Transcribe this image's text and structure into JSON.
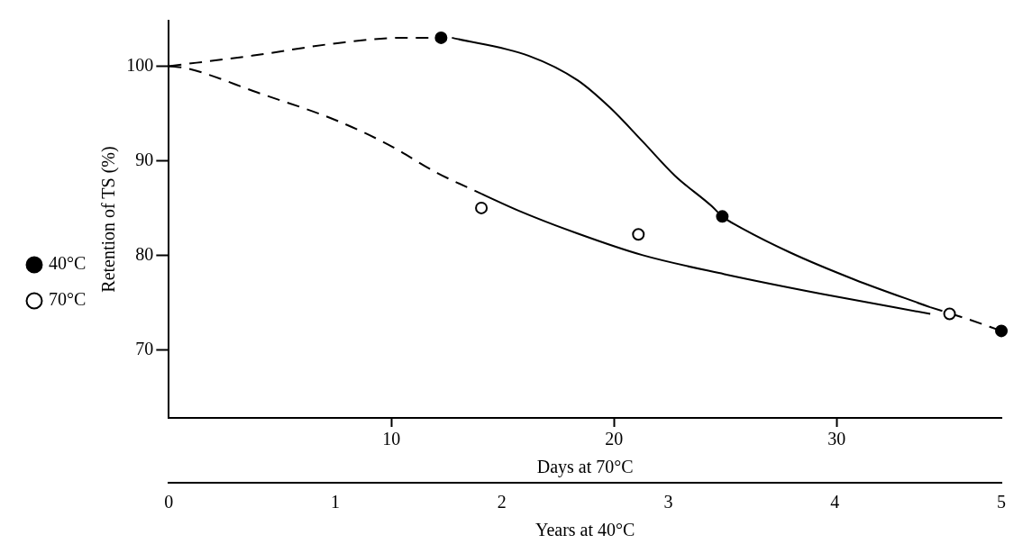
{
  "chart_data": {
    "type": "scatter",
    "xlabel": "Years at 40°C",
    "ylabel": "Retention of TS (%)",
    "x2label": "Days at 70°C",
    "xlim": [
      0,
      5
    ],
    "xticks": [
      0,
      1,
      2,
      3,
      4,
      5
    ],
    "x2lim": [
      0,
      37.4
    ],
    "x2ticks": [
      10,
      20,
      30
    ],
    "ylim": [
      62.8,
      104.8
    ],
    "yticks": [
      70,
      80,
      90,
      100
    ],
    "grid": false,
    "legend": "left",
    "marker": "circle",
    "series": [
      {
        "name": "40°C",
        "color": "#000000",
        "x": [
          1.635,
          3.324,
          5.0
        ],
        "values": [
          103.0,
          84.1,
          72.0
        ]
      },
      {
        "name": "70°C",
        "color": "#ffffff",
        "x": [
          1.877,
          2.82,
          4.689
        ],
        "values": [
          85.0,
          82.2,
          73.8
        ]
      },
      {
        "type": "line",
        "line_style": "dashed",
        "marker": "none",
        "color": "#000000",
        "x": [
          0,
          0.5,
          1.0,
          1.4,
          1.635
        ],
        "values": [
          100,
          101.1,
          102.4,
          103.0,
          103.0
        ]
      },
      {
        "type": "line",
        "line_style": "solid",
        "marker": "none",
        "color": "#000000",
        "x": [
          1.7,
          2.16,
          2.455,
          2.65,
          2.847,
          3.04,
          3.26,
          3.324,
          3.416,
          3.73,
          4.122,
          4.573
        ],
        "values": [
          103.0,
          101.1,
          98.5,
          95.6,
          92.0,
          88.4,
          85.2,
          84.1,
          83.1,
          80.3,
          77.4,
          74.5
        ]
      },
      {
        "type": "line",
        "line_style": "dashed",
        "marker": "none",
        "color": "#000000",
        "x": [
          4.573,
          4.79,
          5.0
        ],
        "values": [
          74.5,
          73.3,
          72.0
        ]
      },
      {
        "type": "line",
        "line_style": "dashed",
        "marker": "none",
        "color": "#000000",
        "x": [
          0,
          0.1,
          0.533,
          1.0,
          1.318,
          1.612,
          1.877
        ],
        "values": [
          100,
          99.8,
          97.2,
          94.3,
          91.7,
          88.7,
          86.5
        ]
      },
      {
        "type": "line",
        "line_style": "solid",
        "marker": "none",
        "color": "#000000",
        "x": [
          1.877,
          2.103,
          2.455,
          2.847,
          3.337,
          3.926,
          4.573
        ],
        "values": [
          86.5,
          84.7,
          82.3,
          80.0,
          78.0,
          75.9,
          73.8
        ]
      }
    ]
  }
}
